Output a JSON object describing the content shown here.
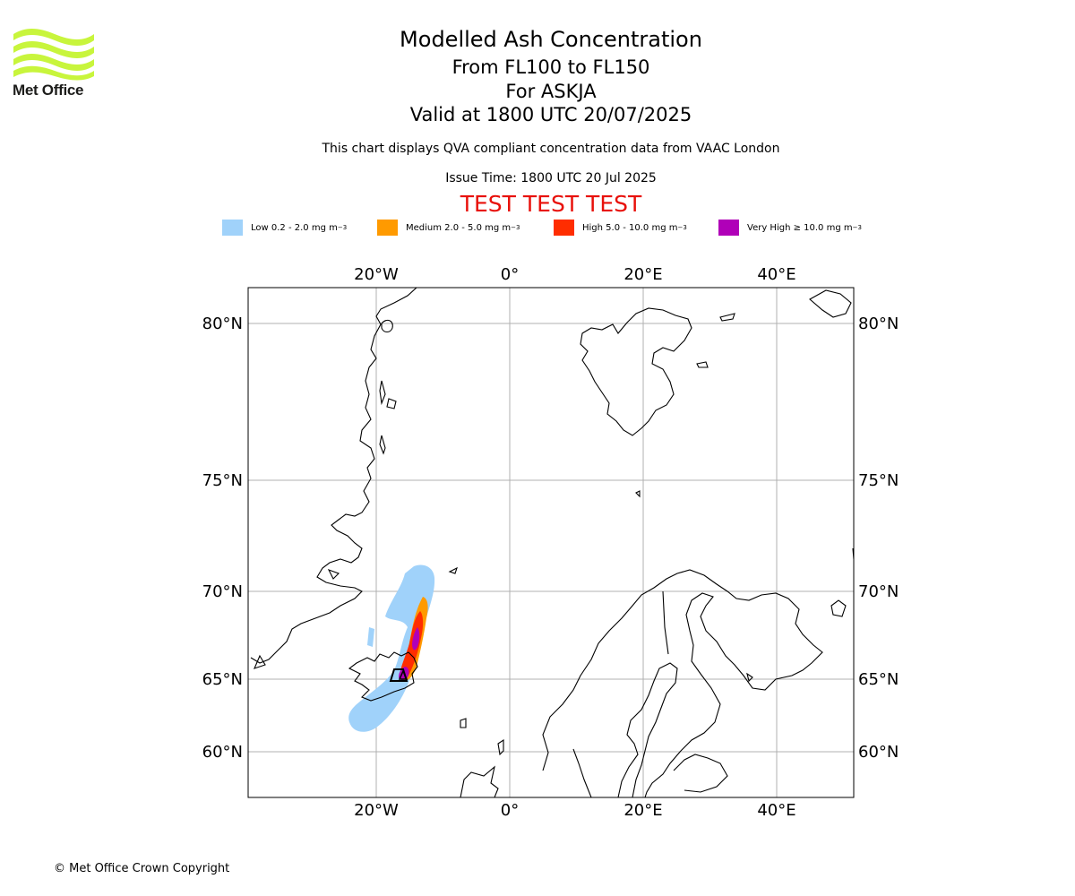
{
  "header": {
    "title": "Modelled Ash Concentration",
    "flight_levels": "From FL100 to FL150",
    "volcano": "For ASKJA",
    "valid_time": "Valid at 1800 UTC 20/07/2025",
    "subtitle": "This chart displays QVA compliant concentration data from VAAC London",
    "issue_time": "Issue Time: 1800 UTC 20 Jul 2025",
    "test_banner": "TEST TEST TEST"
  },
  "logo": {
    "text": "Met Office",
    "color": "#c8f53c"
  },
  "legend": [
    {
      "label": "Low 0.2 - 2.0 mg m",
      "unit_sup": "−3",
      "color": "#a0d2fa"
    },
    {
      "label": "Medium 2.0 - 5.0 mg m",
      "unit_sup": "−3",
      "color": "#ff9a00"
    },
    {
      "label": "High 5.0 - 10.0 mg m",
      "unit_sup": "−3",
      "color": "#ff2d00"
    },
    {
      "label": "Very High  ≥  10.0 mg m",
      "unit_sup": "−3",
      "color": "#b000b8"
    }
  ],
  "map": {
    "projection": "polar stereographic",
    "longitude_labels": [
      "20°W",
      "0°",
      "20°E",
      "40°E"
    ],
    "latitude_labels": [
      "80°N",
      "75°N",
      "70°N",
      "65°N",
      "60°N"
    ],
    "grid": true,
    "volcano_marker": "triangle",
    "volcano_location": {
      "lat": 65.03,
      "lon": -16.75
    }
  },
  "footer": {
    "copyright": "© Met Office Crown Copyright"
  }
}
